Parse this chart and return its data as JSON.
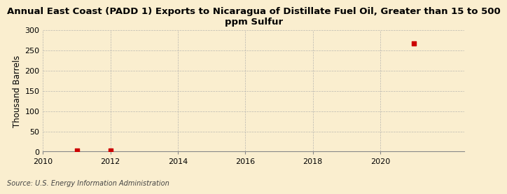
{
  "title": "Annual East Coast (PADD 1) Exports to Nicaragua of Distillate Fuel Oil, Greater than 15 to 500\nppm Sulfur",
  "ylabel": "Thousand Barrels",
  "source": "Source: U.S. Energy Information Administration",
  "background_color": "#faeecf",
  "plot_background_color": "#faeecf",
  "data_points": [
    {
      "year": 2011,
      "value": 2
    },
    {
      "year": 2012,
      "value": 2
    },
    {
      "year": 2021,
      "value": 268
    }
  ],
  "marker_color": "#cc0000",
  "marker_size": 4,
  "xlim": [
    2010,
    2022.5
  ],
  "ylim": [
    0,
    300
  ],
  "xticks": [
    2010,
    2012,
    2014,
    2016,
    2018,
    2020
  ],
  "yticks": [
    0,
    50,
    100,
    150,
    200,
    250,
    300
  ],
  "grid_color": "#aaaaaa",
  "grid_style": "--",
  "title_fontsize": 9.5,
  "axis_fontsize": 8.5,
  "tick_fontsize": 8,
  "source_fontsize": 7
}
